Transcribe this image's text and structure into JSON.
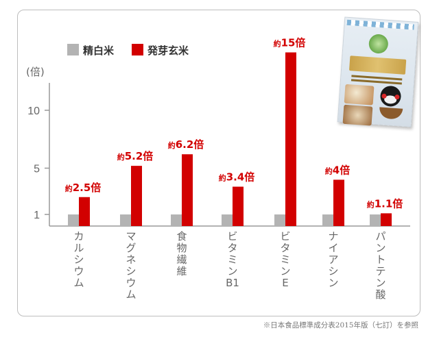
{
  "footnote": "※日本食品標準成分表2015年版（七訂）を参照",
  "colors": {
    "refined": "#b3b3b3",
    "brown": "#d20000",
    "axis": "#999999",
    "tick_text": "#666666"
  },
  "product_image": {
    "icon": "zassen-rice-package-icon"
  },
  "chart_data": {
    "type": "bar",
    "ylabel": "(倍)",
    "yticks": [
      1,
      5,
      10
    ],
    "ylim": [
      0,
      15.5
    ],
    "legend": {
      "placement": "top-left",
      "entries": [
        "精白米",
        "発芽玄米"
      ]
    },
    "categories": [
      "カルシウム",
      "マグネシウム",
      "食物繊維",
      "ビタミンB1",
      "ビタミンE",
      "ナイアシン",
      "パントテン酸"
    ],
    "series": [
      {
        "name": "精白米",
        "values": [
          1,
          1,
          1,
          1,
          1,
          1,
          1
        ]
      },
      {
        "name": "発芽玄米",
        "values": [
          2.5,
          5.2,
          6.2,
          3.4,
          15,
          4,
          1.1
        ]
      }
    ],
    "data_labels": [
      {
        "prefix": "約",
        "value": "2.5倍"
      },
      {
        "prefix": "約",
        "value": "5.2倍"
      },
      {
        "prefix": "約",
        "value": "6.2倍"
      },
      {
        "prefix": "約",
        "value": "3.4倍"
      },
      {
        "prefix": "約",
        "value": "15倍"
      },
      {
        "prefix": "約",
        "value": "4倍"
      },
      {
        "prefix": "約",
        "value": "1.1倍"
      }
    ],
    "grid": false
  }
}
